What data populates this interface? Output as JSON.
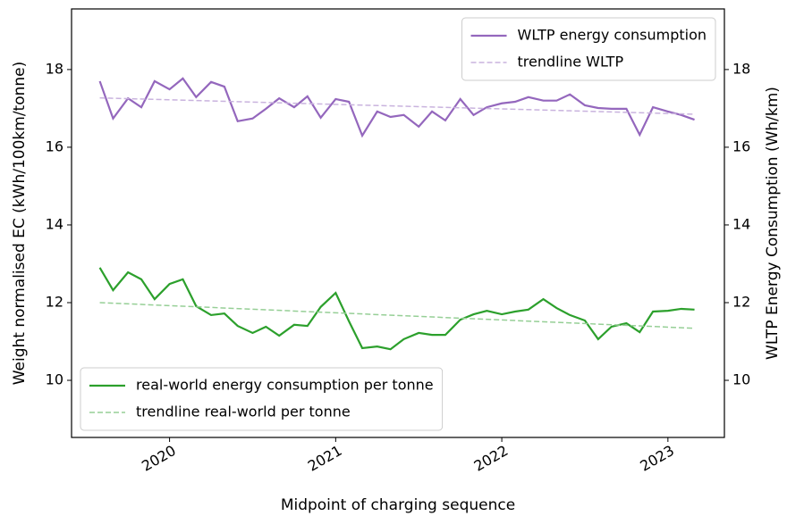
{
  "chart_data": {
    "type": "line",
    "x_label": "Midpoint of charging sequence",
    "y_label": "Weight normalised EC (kWh/100km/tonne)",
    "y2_label": "WLTP Energy Consumption (Wh/km)",
    "xlim": [
      2019.41,
      2023.34
    ],
    "xticks": [
      2020,
      2021,
      2022,
      2023
    ],
    "ylim": [
      8.53,
      19.56
    ],
    "yticks": [
      10,
      12,
      14,
      16,
      18
    ],
    "y2lim": [
      8.53,
      19.56
    ],
    "y2ticks": [
      10,
      12,
      14,
      16,
      18
    ],
    "x": [
      2019.58,
      2019.66,
      2019.75,
      2019.83,
      2019.91,
      2020.0,
      2020.08,
      2020.16,
      2020.25,
      2020.33,
      2020.41,
      2020.5,
      2020.58,
      2020.66,
      2020.75,
      2020.83,
      2020.91,
      2021.0,
      2021.08,
      2021.16,
      2021.25,
      2021.33,
      2021.41,
      2021.5,
      2021.58,
      2021.66,
      2021.75,
      2021.83,
      2021.91,
      2022.0,
      2022.08,
      2022.16,
      2022.25,
      2022.33,
      2022.41,
      2022.5,
      2022.58,
      2022.66,
      2022.75,
      2022.83,
      2022.91,
      2023.0,
      2023.08,
      2023.16
    ],
    "series": [
      {
        "name": "real-world energy consumption per tonne",
        "color": "#2ca02c",
        "dashed": false,
        "legend": "lower left",
        "values": [
          12.9,
          12.32,
          12.78,
          12.6,
          12.09,
          12.48,
          12.6,
          11.91,
          11.68,
          11.72,
          11.4,
          11.22,
          11.38,
          11.15,
          11.43,
          11.4,
          11.89,
          12.25,
          11.52,
          10.83,
          10.87,
          10.8,
          11.06,
          11.22,
          11.17,
          11.17,
          11.56,
          11.7,
          11.79,
          11.7,
          11.77,
          11.82,
          12.09,
          11.86,
          11.68,
          11.54,
          11.06,
          11.38,
          11.47,
          11.24,
          11.77,
          11.79,
          11.84,
          11.82
        ]
      },
      {
        "name": "trendline real-world per tonne",
        "color": "#96cf96",
        "dashed": true,
        "legend": "lower left",
        "x": [
          2019.58,
          2023.16
        ],
        "values": [
          12.0,
          11.34
        ]
      },
      {
        "name": "WLTP energy consumption",
        "color": "#9467bd",
        "dashed": false,
        "legend": "upper right",
        "axis": "y2",
        "values": [
          17.7,
          16.74,
          17.26,
          17.03,
          17.7,
          17.49,
          17.77,
          17.29,
          17.68,
          17.56,
          16.67,
          16.74,
          16.99,
          17.26,
          17.03,
          17.31,
          16.76,
          17.24,
          17.17,
          16.3,
          16.92,
          16.78,
          16.83,
          16.53,
          16.92,
          16.69,
          17.24,
          16.83,
          17.03,
          17.13,
          17.17,
          17.29,
          17.2,
          17.2,
          17.36,
          17.08,
          17.01,
          16.99,
          16.99,
          16.32,
          17.03,
          16.92,
          16.83,
          16.71
        ]
      },
      {
        "name": "trendline WLTP",
        "color": "#c9b3de",
        "dashed": true,
        "legend": "upper right",
        "axis": "y2",
        "x": [
          2019.58,
          2023.16
        ],
        "values": [
          17.27,
          16.85
        ]
      }
    ]
  }
}
